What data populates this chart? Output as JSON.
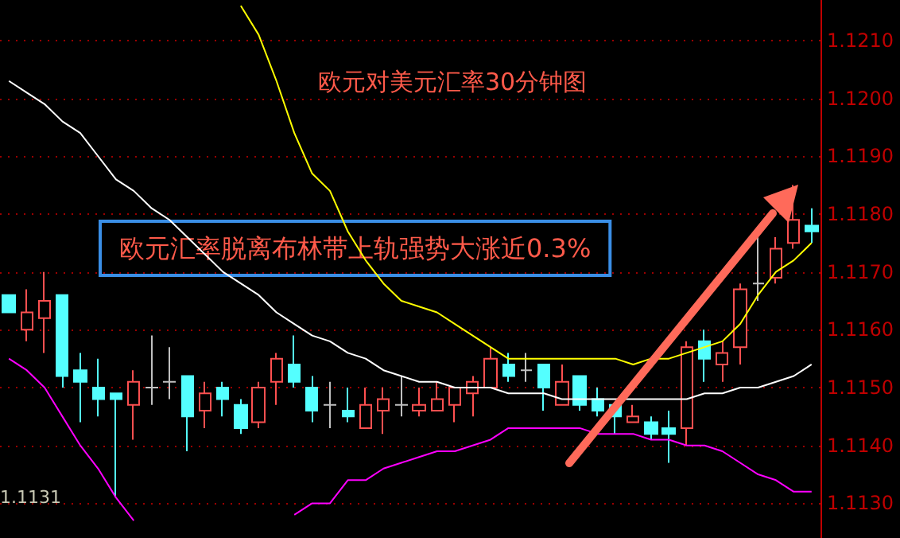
{
  "chart_data": {
    "type": "candlestick",
    "title": "欧元对美元汇率30分钟图",
    "annotations": [
      "欧元汇率脱离布林带上轨强势大涨近0.3%",
      "1.1131"
    ],
    "categories": [
      null,
      null,
      null,
      null,
      null,
      null,
      null,
      null,
      null,
      null,
      null,
      null,
      null,
      null,
      null,
      null,
      null,
      null,
      null,
      null,
      null,
      null,
      null,
      null,
      null,
      null,
      null,
      null,
      null,
      null,
      null,
      null,
      null,
      null,
      null,
      null,
      null,
      null,
      null,
      null,
      null,
      null,
      null,
      null,
      null,
      null
    ],
    "ohlc": [
      [
        1.1166,
        1.1166,
        1.1163,
        1.1163
      ],
      [
        1.116,
        1.1167,
        1.1158,
        1.1163
      ],
      [
        1.1162,
        1.117,
        1.1156,
        1.1165
      ],
      [
        1.1166,
        1.1166,
        1.115,
        1.1152
      ],
      [
        1.1153,
        1.1156,
        1.1144,
        1.1151
      ],
      [
        1.115,
        1.1155,
        1.1145,
        1.1148
      ],
      [
        1.1149,
        1.1149,
        1.1131,
        1.1148
      ],
      [
        1.1147,
        1.1153,
        1.1141,
        1.1151
      ],
      [
        1.115,
        1.1159,
        1.1147,
        1.115
      ],
      [
        1.1151,
        1.1157,
        1.1148,
        1.1151
      ],
      [
        1.1152,
        1.1152,
        1.1139,
        1.1145
      ],
      [
        1.1146,
        1.1151,
        1.1143,
        1.1149
      ],
      [
        1.115,
        1.1151,
        1.1145,
        1.1148
      ],
      [
        1.1147,
        1.1148,
        1.1142,
        1.1143
      ],
      [
        1.1144,
        1.1151,
        1.1143,
        1.115
      ],
      [
        1.1151,
        1.1156,
        1.1147,
        1.1155
      ],
      [
        1.1154,
        1.1159,
        1.115,
        1.1151
      ],
      [
        1.115,
        1.1152,
        1.1144,
        1.1146
      ],
      [
        1.1147,
        1.1151,
        1.1143,
        1.1147
      ],
      [
        1.1146,
        1.115,
        1.1144,
        1.1145
      ],
      [
        1.1143,
        1.115,
        1.1143,
        1.1147
      ],
      [
        1.1146,
        1.115,
        1.1142,
        1.1148
      ],
      [
        1.1147,
        1.1152,
        1.1145,
        1.1147
      ],
      [
        1.1146,
        1.115,
        1.1145,
        1.1147
      ],
      [
        1.1146,
        1.1151,
        1.1146,
        1.1148
      ],
      [
        1.1147,
        1.115,
        1.1144,
        1.115
      ],
      [
        1.1149,
        1.1152,
        1.1145,
        1.1151
      ],
      [
        1.115,
        1.1157,
        1.115,
        1.1155
      ],
      [
        1.1154,
        1.1156,
        1.1151,
        1.1152
      ],
      [
        1.1153,
        1.1156,
        1.1151,
        1.1153
      ],
      [
        1.1154,
        1.1154,
        1.1146,
        1.115
      ],
      [
        1.1147,
        1.1154,
        1.1147,
        1.1151
      ],
      [
        1.1152,
        1.1152,
        1.1146,
        1.1147
      ],
      [
        1.1148,
        1.115,
        1.1145,
        1.1146
      ],
      [
        1.1147,
        1.1147,
        1.1142,
        1.1145
      ],
      [
        1.1144,
        1.1147,
        1.1144,
        1.1145
      ],
      [
        1.1144,
        1.1145,
        1.1141,
        1.1142
      ],
      [
        1.1143,
        1.1146,
        1.1137,
        1.1142
      ],
      [
        1.1143,
        1.1158,
        1.114,
        1.1157
      ],
      [
        1.1158,
        1.116,
        1.1151,
        1.1155
      ],
      [
        1.1154,
        1.1158,
        1.1151,
        1.1156
      ],
      [
        1.1157,
        1.1168,
        1.1154,
        1.1167
      ],
      [
        1.1168,
        1.1176,
        1.1165,
        1.1168
      ],
      [
        1.1169,
        1.1176,
        1.1168,
        1.1174
      ],
      [
        1.1175,
        1.1185,
        1.1174,
        1.1179
      ],
      [
        1.1178,
        1.1181,
        1.1175,
        1.1177
      ]
    ],
    "colors": [
      "#54ffff",
      "#ff5050",
      "#ff5050",
      "#54ffff",
      "#54ffff",
      "#54ffff",
      "#54ffff",
      "#ff5050",
      "#c0c0c0",
      "#c0c0c0",
      "#54ffff",
      "#ff5050",
      "#54ffff",
      "#54ffff",
      "#ff5050",
      "#ff5050",
      "#54ffff",
      "#54ffff",
      "#c0c0c0",
      "#54ffff",
      "#ff5050",
      "#ff5050",
      "#c0c0c0",
      "#ff5050",
      "#ff5050",
      "#ff5050",
      "#ff5050",
      "#ff5050",
      "#54ffff",
      "#c0c0c0",
      "#54ffff",
      "#ff5050",
      "#54ffff",
      "#54ffff",
      "#54ffff",
      "#ff5050",
      "#54ffff",
      "#54ffff",
      "#ff5050",
      "#54ffff",
      "#ff5050",
      "#ff5050",
      "#c0c0c0",
      "#ff5050",
      "#ff5050",
      "#54ffff"
    ],
    "series": [
      {
        "type": "line",
        "color": "#ffff00",
        "values": [
          null,
          null,
          null,
          null,
          null,
          null,
          null,
          null,
          null,
          null,
          null,
          null,
          null,
          1.1216,
          1.1211,
          1.1203,
          1.1194,
          1.1187,
          1.1184,
          1.1177,
          1.1172,
          1.1168,
          1.1165,
          1.1164,
          1.1163,
          1.1161,
          1.1159,
          1.1157,
          1.1155,
          1.1155,
          1.1155,
          1.1155,
          1.1155,
          1.1155,
          1.1155,
          1.1154,
          1.1155,
          1.1155,
          1.1156,
          1.1157,
          1.1158,
          1.1161,
          1.1166,
          1.117,
          1.1172,
          1.1175
        ]
      },
      {
        "type": "line",
        "color": "#ffffff",
        "values": [
          1.1203,
          1.1201,
          1.1199,
          1.1196,
          1.1194,
          1.119,
          1.1186,
          1.1184,
          1.1181,
          1.1179,
          1.1176,
          1.1173,
          1.117,
          1.1168,
          1.1166,
          1.1163,
          1.1161,
          1.1159,
          1.1158,
          1.1156,
          1.1155,
          1.1153,
          1.1152,
          1.1151,
          1.1151,
          1.115,
          1.115,
          1.115,
          1.1149,
          1.1149,
          1.1149,
          1.1148,
          1.1148,
          1.1148,
          1.1148,
          1.1148,
          1.1148,
          1.1148,
          1.1148,
          1.1149,
          1.1149,
          1.115,
          1.115,
          1.1151,
          1.1152,
          1.1154
        ]
      },
      {
        "type": "line",
        "color": "#ff00ff",
        "values": [
          1.1155,
          1.1153,
          1.115,
          1.1145,
          1.114,
          1.1136,
          1.1131,
          1.1127,
          null,
          null,
          null,
          null,
          null,
          null,
          null,
          null,
          1.1128,
          1.113,
          1.113,
          1.1134,
          1.1134,
          1.1136,
          1.1137,
          1.1138,
          1.1139,
          1.1139,
          1.114,
          1.1141,
          1.1143,
          1.1143,
          1.1143,
          1.1143,
          1.1143,
          1.1142,
          1.1142,
          1.1142,
          1.1141,
          1.1141,
          1.114,
          1.114,
          1.1139,
          1.1137,
          1.1135,
          1.1134,
          1.1132,
          1.1132
        ]
      }
    ],
    "marker": "none",
    "line_style": "solid",
    "ylim": [
      1.1124,
      1.1217
    ],
    "yticks": [
      {
        "value": 1.113,
        "label": "1.1130"
      },
      {
        "value": 1.114,
        "label": "1.1140"
      },
      {
        "value": 1.115,
        "label": "1.1150"
      },
      {
        "value": 1.116,
        "label": "1.1160"
      },
      {
        "value": 1.117,
        "label": "1.1170"
      },
      {
        "value": 1.118,
        "label": "1.1180"
      },
      {
        "value": 1.119,
        "label": "1.1190"
      },
      {
        "value": 1.12,
        "label": "1.1200"
      },
      {
        "value": 1.121,
        "label": "1.1210"
      }
    ],
    "grid": "y",
    "tick_labels": "y"
  }
}
